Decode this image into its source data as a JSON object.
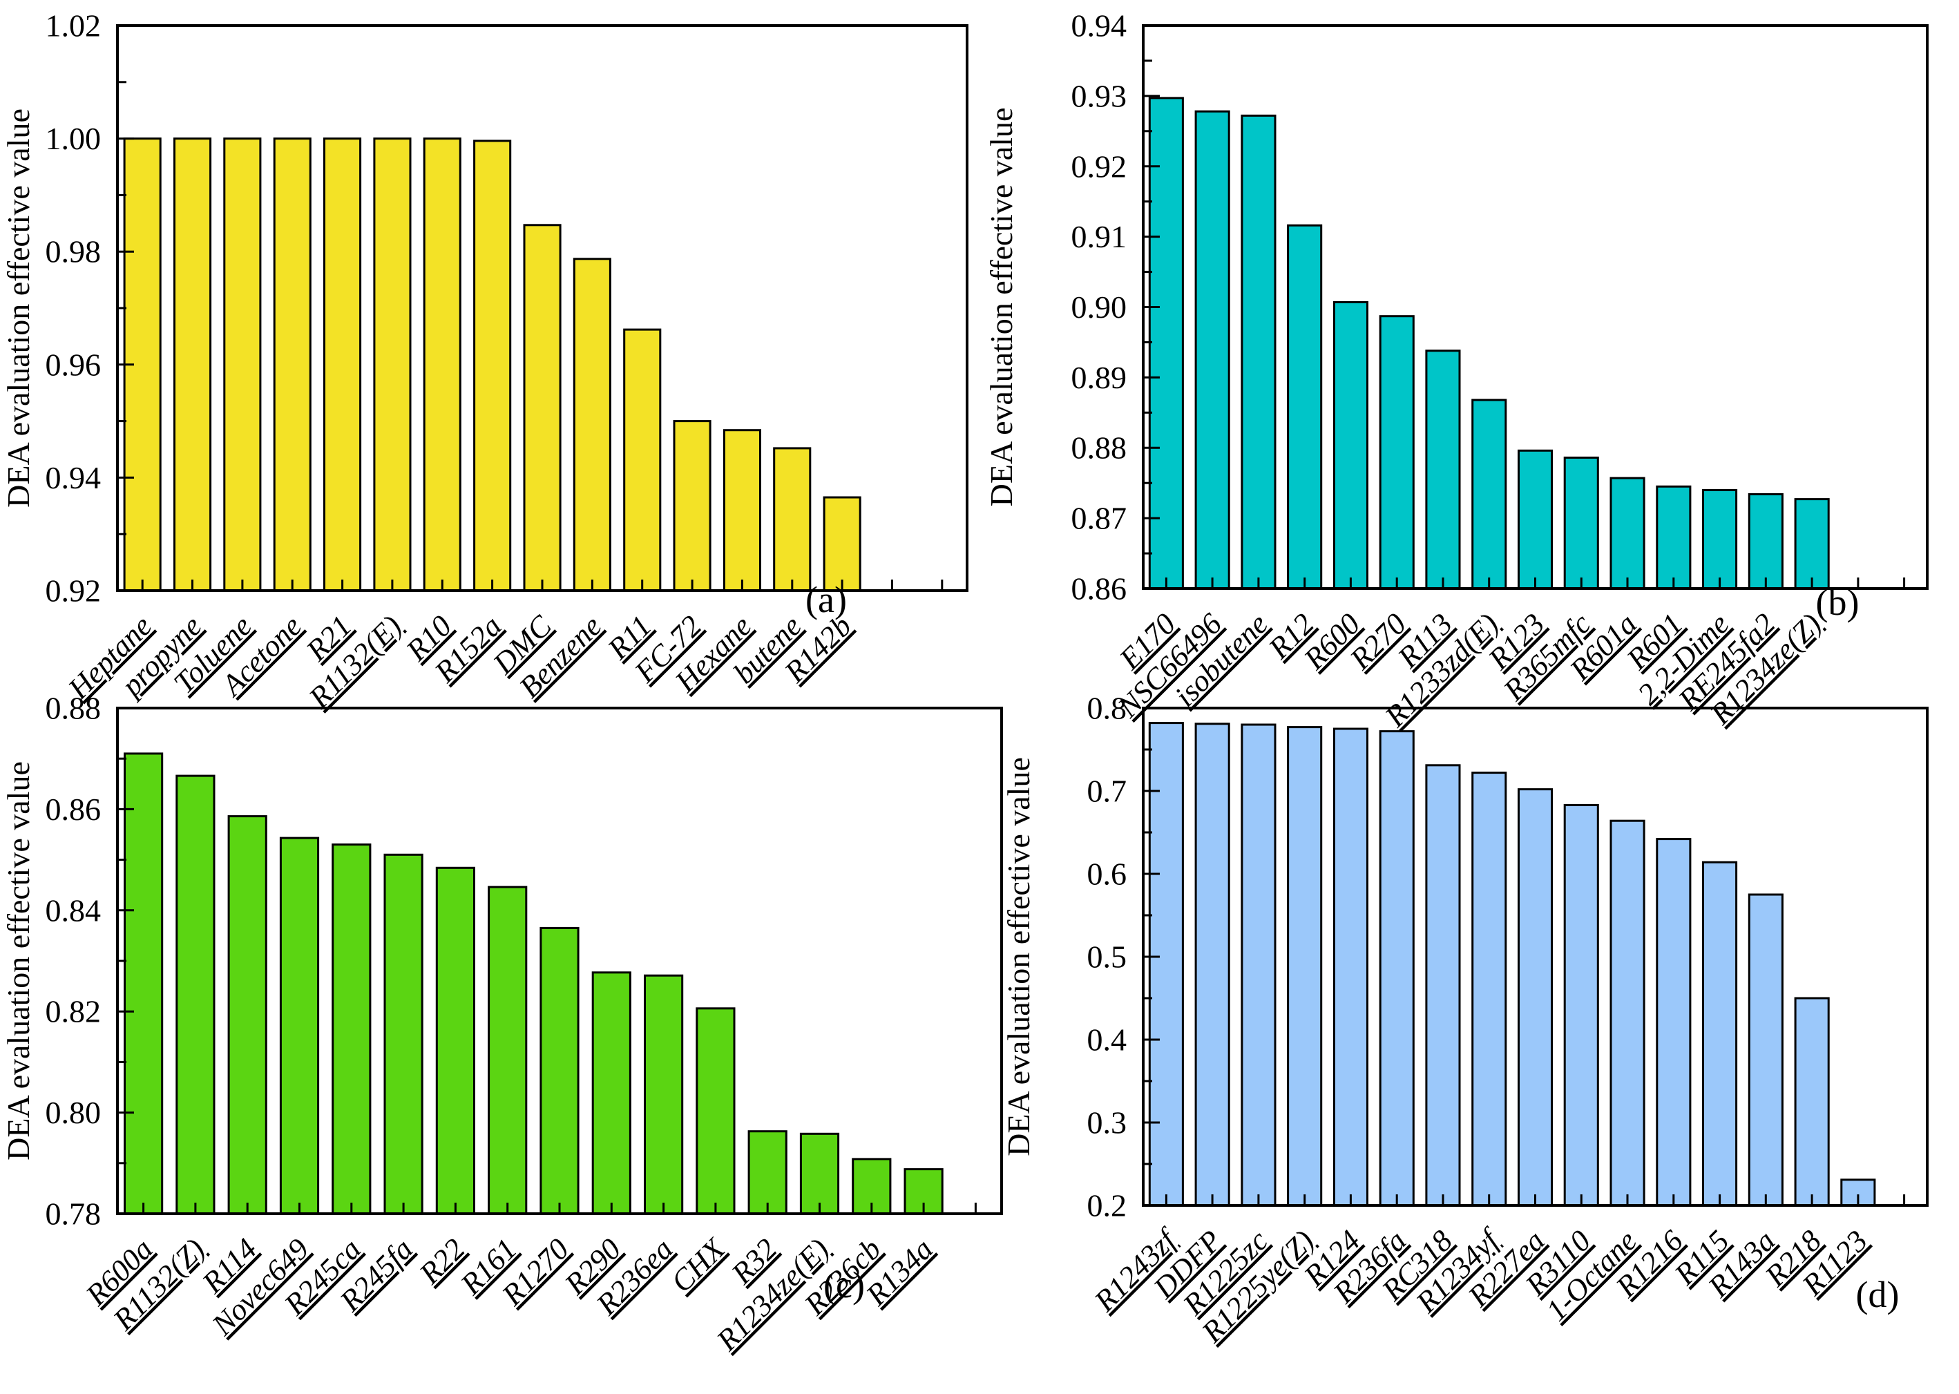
{
  "figure": {
    "background_color": "#ffffff",
    "axis_color": "#000000",
    "panel_tags": [
      "(a)",
      "(b)",
      "(c)",
      "(d)"
    ]
  },
  "chart_data": [
    {
      "panel": "(a)",
      "type": "bar",
      "title": "",
      "xlabel": "",
      "ylabel": "DEA evaluation effective value",
      "ylim": [
        0.92,
        1.02
      ],
      "ytick_major": 0.02,
      "ytick_minor": 0.01,
      "ytick_decimals": 2,
      "x_slot_count": 17,
      "grid": false,
      "legend": "none",
      "bar_color": "#F3E226",
      "bar_edge_color": "#000000",
      "categories": [
        "Heptane",
        "propyne",
        "Toluene",
        "Acetone",
        "R21",
        "R1132(E)",
        "R10",
        "R152a",
        "DMC",
        "Benzene",
        "R11",
        "FC-72",
        "Hexane",
        "butene",
        "R142b"
      ],
      "values": [
        1.0,
        1.0,
        1.0,
        1.0,
        1.0,
        1.0,
        1.0,
        0.9996,
        0.9847,
        0.9787,
        0.9662,
        0.95,
        0.9484,
        0.9452,
        0.9365
      ]
    },
    {
      "panel": "(b)",
      "type": "bar",
      "title": "",
      "xlabel": "",
      "ylabel": "DEA evaluation effective value",
      "ylim": [
        0.86,
        0.94
      ],
      "ytick_major": 0.01,
      "ytick_minor": 0.005,
      "ytick_decimals": 2,
      "x_slot_count": 17,
      "grid": false,
      "legend": "none",
      "bar_color": "#00C5C8",
      "bar_edge_color": "#000000",
      "categories": [
        "E170",
        "NSC66496",
        "isobutene",
        "R12",
        "R600",
        "R270",
        "R113",
        "R1233zd(E)",
        "R123",
        "R365mfc",
        "R601a",
        "R601",
        "2,2-Dime",
        "RE245fa2",
        "R1234ze(Z)"
      ],
      "values": [
        0.9297,
        0.9278,
        0.9272,
        0.9116,
        0.9007,
        0.8987,
        0.8938,
        0.8868,
        0.8796,
        0.8786,
        0.8757,
        0.8745,
        0.874,
        0.8734,
        0.8727
      ]
    },
    {
      "panel": "(c)",
      "type": "bar",
      "title": "",
      "xlabel": "",
      "ylabel": "DEA evaluation effective value",
      "ylim": [
        0.78,
        0.88
      ],
      "ytick_major": 0.02,
      "ytick_minor": 0.01,
      "ytick_decimals": 2,
      "x_slot_count": 17,
      "grid": false,
      "legend": "none",
      "bar_color": "#5BD512",
      "bar_edge_color": "#000000",
      "categories": [
        "R600a",
        "R1132(Z)",
        "R114",
        "Novec649",
        "R245ca",
        "R245fa",
        "R22",
        "R161",
        "R1270",
        "R290",
        "R236ea",
        "CHX",
        "R32",
        "R1234ze(E)",
        "R236cb",
        "R134a"
      ],
      "values": [
        0.871,
        0.8666,
        0.8586,
        0.8543,
        0.853,
        0.851,
        0.8484,
        0.8446,
        0.8365,
        0.8277,
        0.8271,
        0.8206,
        0.7963,
        0.7958,
        0.7908,
        0.7888
      ]
    },
    {
      "panel": "(d)",
      "type": "bar",
      "title": "",
      "xlabel": "",
      "ylabel": "DEA evaluation effective value",
      "ylim": [
        0.2,
        0.8
      ],
      "ytick_major": 0.1,
      "ytick_minor": 0.05,
      "ytick_decimals": 1,
      "x_slot_count": 17,
      "grid": false,
      "legend": "none",
      "bar_color": "#9BC8FA",
      "bar_edge_color": "#000000",
      "categories": [
        "R1243zf",
        "DDFP",
        "R1225zc",
        "R1225ye(Z)",
        "R124",
        "R236fa",
        "RC318",
        "R1234yf",
        "R227ea",
        "R3110",
        "1-Octane",
        "R1216",
        "R115",
        "R143a",
        "R218",
        "R1123"
      ],
      "values": [
        0.782,
        0.781,
        0.78,
        0.777,
        0.775,
        0.772,
        0.731,
        0.722,
        0.702,
        0.683,
        0.664,
        0.642,
        0.614,
        0.575,
        0.45,
        0.231
      ]
    }
  ]
}
